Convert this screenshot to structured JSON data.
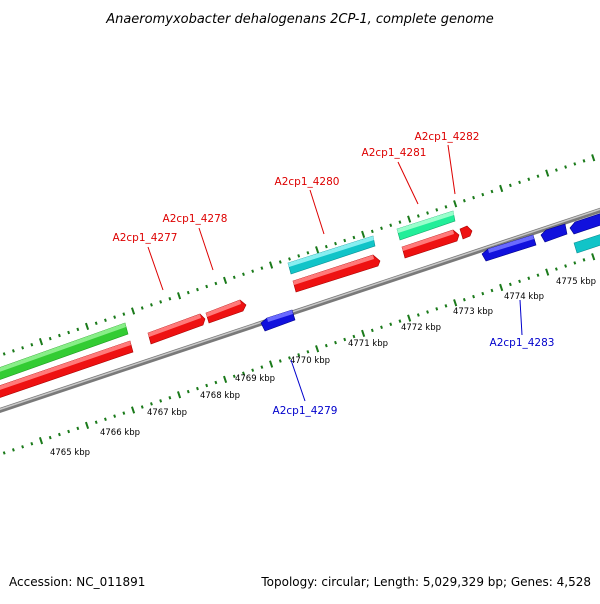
{
  "title": "Anaeromyxobacter dehalogenans 2CP-1, complete genome",
  "footer": {
    "accession": "Accession: NC_011891",
    "summary": "Topology: circular; Length: 5,029,329 bp; Genes: 4,528"
  },
  "colors": {
    "forward_cds": "#ee1111",
    "reverse_cds": "#1111dd",
    "forward_rna_dark": "#33cc33",
    "forward_rna_teal": "#11c4c8",
    "forward_rna_mint": "#22ee99",
    "backbone": "#8a8a8a",
    "tick_green": "#1a7a1a",
    "label_forward": "#dd0000",
    "label_reverse": "#0000cc"
  },
  "ruler": {
    "unit": "kbp",
    "positions": [
      4765,
      4766,
      4767,
      4768,
      4769,
      4770,
      4771,
      4772,
      4773,
      4774,
      4775
    ],
    "labels": [
      "4765 kbp",
      "4766 kbp",
      "4767 kbp",
      "4768 kbp",
      "4769 kbp",
      "4770 kbp",
      "4771 kbp",
      "4772 kbp",
      "4773 kbp",
      "4774 kbp",
      "4775 kbp"
    ]
  },
  "gene_labels": {
    "forward": [
      "A2cp1_4277",
      "A2cp1_4278",
      "A2cp1_4280",
      "A2cp1_4281",
      "A2cp1_4282"
    ],
    "reverse": [
      "A2cp1_4279",
      "A2cp1_4283"
    ]
  },
  "features": [
    {
      "name": "green-outer-feature",
      "strand": "forward",
      "kind": "rna-green"
    },
    {
      "name": "forward-cds-long",
      "strand": "forward",
      "kind": "cds"
    },
    {
      "name": "A2cp1_4277",
      "strand": "forward",
      "kind": "cds"
    },
    {
      "name": "A2cp1_4278",
      "strand": "forward",
      "kind": "cds"
    },
    {
      "name": "A2cp1_4279",
      "strand": "reverse",
      "kind": "cds"
    },
    {
      "name": "A2cp1_4280",
      "strand": "forward",
      "kind": "rna-teal"
    },
    {
      "name": "A2cp1_4280-cds",
      "strand": "forward",
      "kind": "cds"
    },
    {
      "name": "A2cp1_4281",
      "strand": "forward",
      "kind": "rna-mint"
    },
    {
      "name": "A2cp1_4281-cds",
      "strand": "forward",
      "kind": "cds"
    },
    {
      "name": "A2cp1_4282",
      "strand": "forward",
      "kind": "cds"
    },
    {
      "name": "A2cp1_4283",
      "strand": "reverse",
      "kind": "cds"
    },
    {
      "name": "reverse-cds-small",
      "strand": "reverse",
      "kind": "cds"
    },
    {
      "name": "reverse-cds-edge",
      "strand": "reverse",
      "kind": "cds"
    },
    {
      "name": "teal-edge-feature",
      "strand": "forward",
      "kind": "rna-teal"
    }
  ]
}
